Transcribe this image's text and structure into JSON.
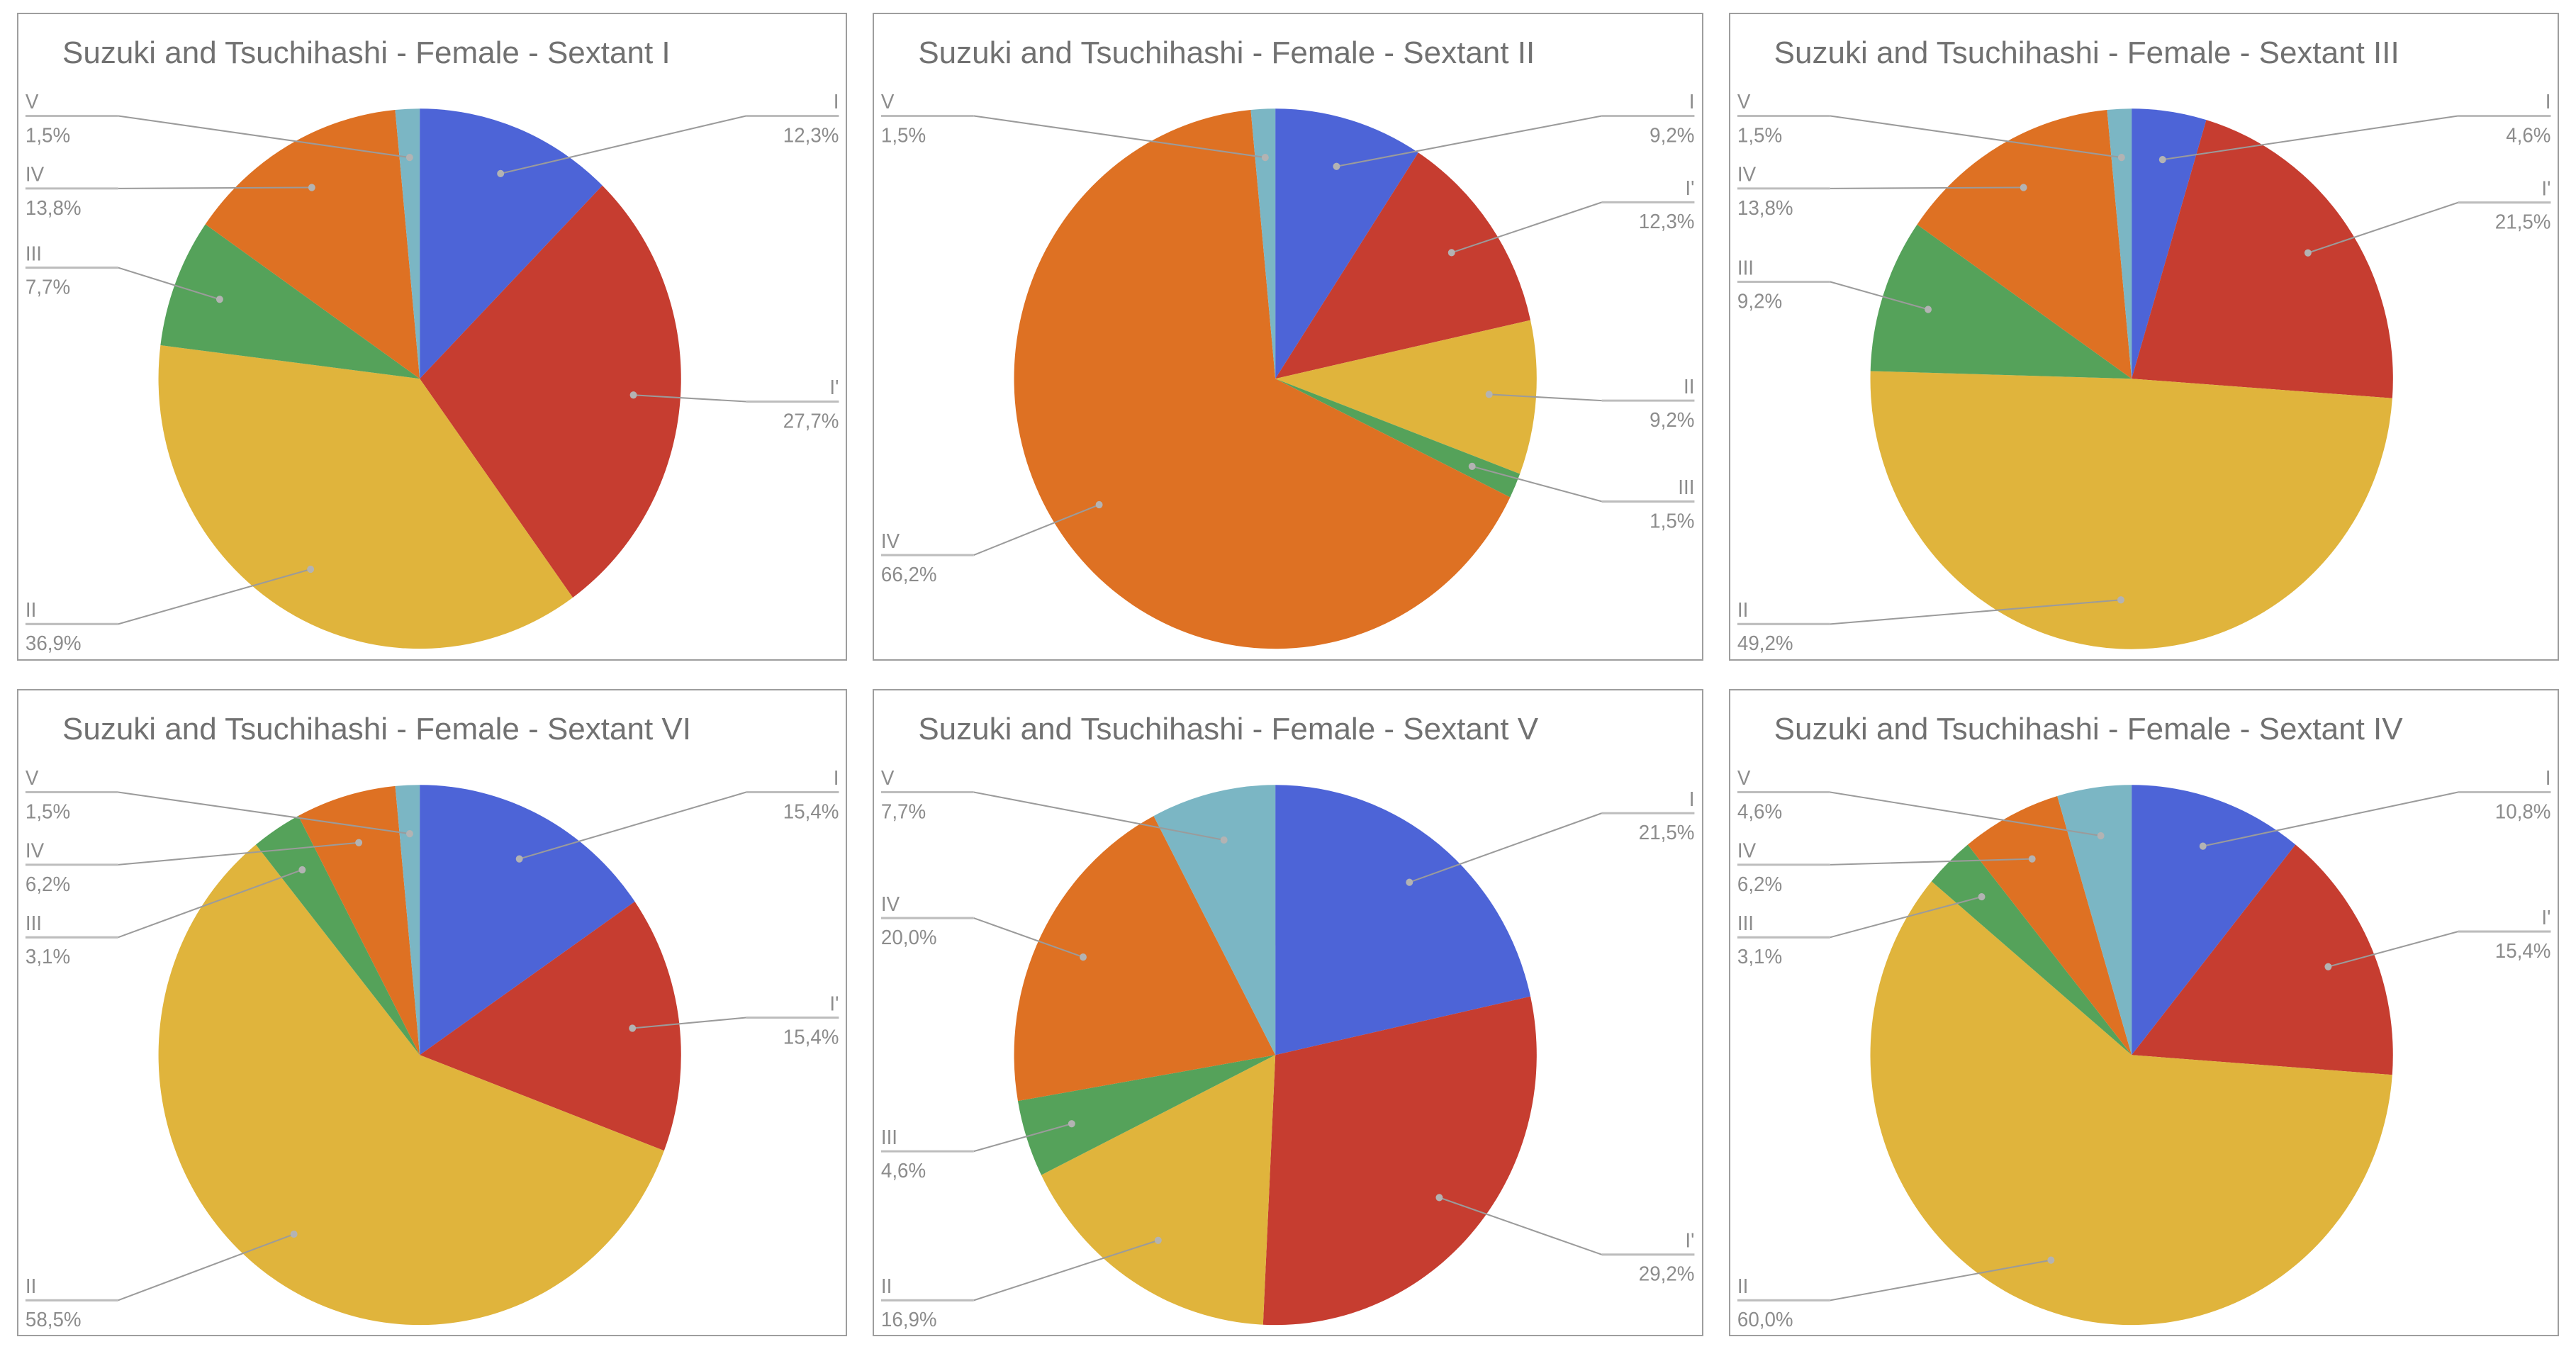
{
  "page": {
    "background": "#ffffff",
    "panel_border_color": "#9e9e9e",
    "title_color": "#717171",
    "label_color": "#8c8c8c",
    "leader_line_color": "#9b9b9b",
    "rule_color": "#bdbdbd",
    "dot_color": "#b3b3b3"
  },
  "palette": {
    "I": "#4d64d7",
    "I'": "#c63d30",
    "II": "#e0b43c",
    "III": "#55a25a",
    "IV": "#de7123",
    "V": "#7bb6c4"
  },
  "chart_data": [
    {
      "type": "pie",
      "title": "Suzuki and Tsuchihashi - Female - Sextant I",
      "legend_position": "callout-labels",
      "units": "%",
      "decimal_separator": ",",
      "labels": [
        "I",
        "I'",
        "II",
        "III",
        "IV",
        "V"
      ],
      "values": [
        12.3,
        27.7,
        36.9,
        7.7,
        13.8,
        1.5
      ],
      "display_values": [
        "12,3%",
        "27,7%",
        "36,9%",
        "7,7%",
        "13,8%",
        "1,5%"
      ]
    },
    {
      "type": "pie",
      "title": "Suzuki and Tsuchihashi - Female - Sextant II",
      "legend_position": "callout-labels",
      "units": "%",
      "decimal_separator": ",",
      "labels": [
        "I",
        "I'",
        "II",
        "III",
        "IV",
        "V"
      ],
      "values": [
        9.2,
        12.3,
        9.2,
        1.5,
        66.2,
        1.5
      ],
      "display_values": [
        "9,2%",
        "12,3%",
        "9,2%",
        "1,5%",
        "66,2%",
        "1,5%"
      ]
    },
    {
      "type": "pie",
      "title": "Suzuki and Tsuchihashi - Female - Sextant III",
      "legend_position": "callout-labels",
      "units": "%",
      "decimal_separator": ",",
      "labels": [
        "I",
        "I'",
        "II",
        "III",
        "IV",
        "V"
      ],
      "values": [
        4.6,
        21.5,
        49.2,
        9.2,
        13.8,
        1.5
      ],
      "display_values": [
        "4,6%",
        "21,5%",
        "49,2%",
        "9,2%",
        "13,8%",
        "1,5%"
      ]
    },
    {
      "type": "pie",
      "title": "Suzuki and Tsuchihashi - Female - Sextant VI",
      "legend_position": "callout-labels",
      "units": "%",
      "decimal_separator": ",",
      "labels": [
        "I",
        "I'",
        "II",
        "III",
        "IV",
        "V"
      ],
      "values": [
        15.4,
        15.4,
        58.5,
        3.1,
        6.2,
        1.5
      ],
      "display_values": [
        "15,4%",
        "15,4%",
        "58,5%",
        "3,1%",
        "6,2%",
        "1,5%"
      ]
    },
    {
      "type": "pie",
      "title": "Suzuki and Tsuchihashi - Female - Sextant V",
      "legend_position": "callout-labels",
      "units": "%",
      "decimal_separator": ",",
      "labels": [
        "I",
        "I'",
        "II",
        "III",
        "IV",
        "V"
      ],
      "values": [
        21.5,
        29.2,
        16.9,
        4.6,
        20.0,
        7.7
      ],
      "display_values": [
        "21,5%",
        "29,2%",
        "16,9%",
        "4,6%",
        "20,0%",
        "7,7%"
      ]
    },
    {
      "type": "pie",
      "title": "Suzuki and Tsuchihashi - Female - Sextant IV",
      "legend_position": "callout-labels",
      "units": "%",
      "decimal_separator": ",",
      "labels": [
        "I",
        "I'",
        "II",
        "III",
        "IV",
        "V"
      ],
      "values": [
        10.8,
        15.4,
        60.0,
        3.1,
        6.2,
        4.6
      ],
      "display_values": [
        "10,8%",
        "15,4%",
        "60,0%",
        "3,1%",
        "6,2%",
        "4,6%"
      ]
    }
  ]
}
